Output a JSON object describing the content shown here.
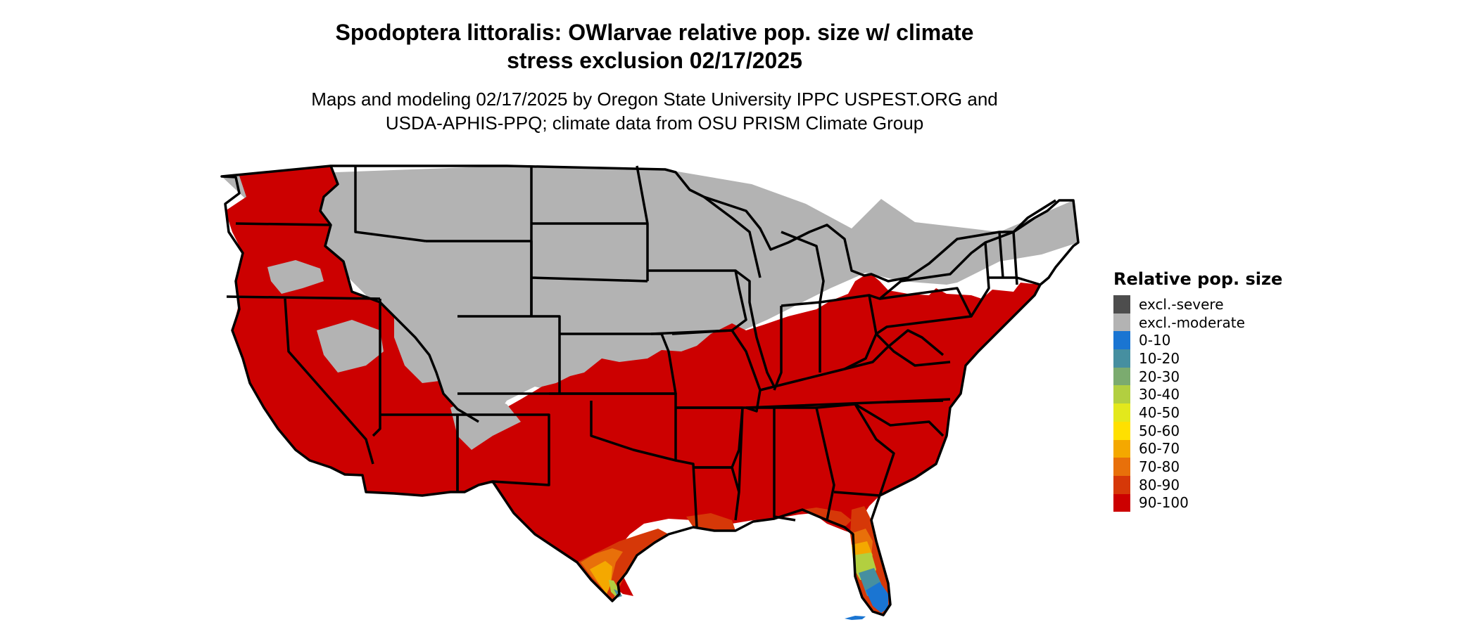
{
  "title": {
    "line1": "Spodoptera littoralis: OWlarvae relative pop. size w/ climate",
    "line2": "stress exclusion 02/17/2025"
  },
  "subtitle": {
    "line1": "Maps and modeling 02/17/2025 by Oregon State University IPPC USPEST.ORG and",
    "line2": "USDA-APHIS-PPQ; climate data from OSU PRISM Climate Group"
  },
  "legend": {
    "title": "Relative pop. size",
    "items": [
      {
        "label": "excl.-severe",
        "color": "#4d4d4d"
      },
      {
        "label": "excl.-moderate",
        "color": "#b3b3b3"
      },
      {
        "label": "0-10",
        "color": "#1a75d2"
      },
      {
        "label": "10-20",
        "color": "#468fa0"
      },
      {
        "label": "20-30",
        "color": "#7bab6f"
      },
      {
        "label": "30-40",
        "color": "#b2cf40"
      },
      {
        "label": "40-50",
        "color": "#e3e81c"
      },
      {
        "label": "50-60",
        "color": "#ffe000"
      },
      {
        "label": "60-70",
        "color": "#f4a800"
      },
      {
        "label": "70-80",
        "color": "#e8700a"
      },
      {
        "label": "80-90",
        "color": "#d63808"
      },
      {
        "label": "90-100",
        "color": "#cc0000"
      }
    ]
  },
  "map_colors": {
    "excluded_moderate": "#b3b3b3",
    "class_90_100": "#cc0000",
    "class_80_90": "#d63808",
    "class_70_80": "#e8700a",
    "class_60_70": "#f4a800",
    "class_30_40": "#b2cf40",
    "class_20_30": "#7bab6f",
    "class_10_20": "#468fa0",
    "class_0_10": "#1a75d2",
    "state_border": "#000000"
  }
}
